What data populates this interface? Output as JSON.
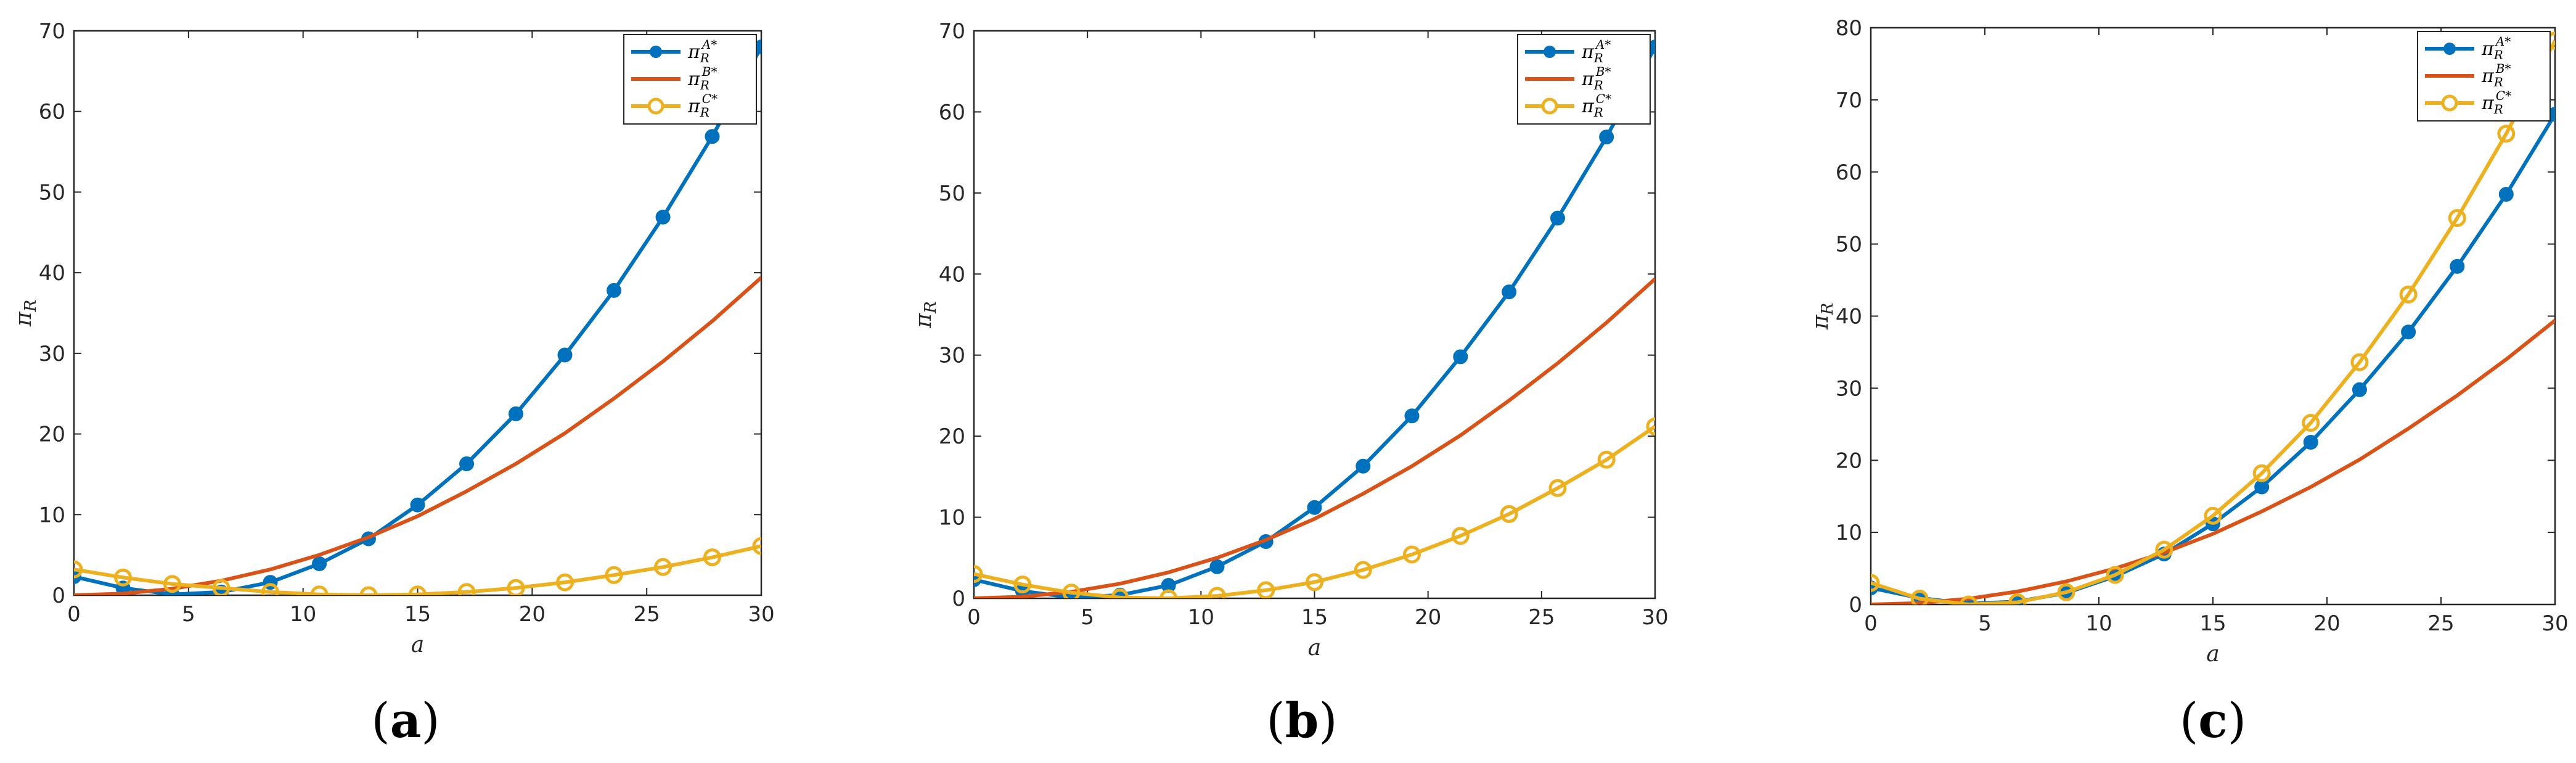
{
  "chart_data": [
    {
      "type": "line",
      "caption_letter": "a",
      "xlabel_symbol": "a",
      "ylabel_symbol": "π",
      "ylabel_subscript": "R",
      "xlim": [
        0,
        30
      ],
      "ylim": [
        0,
        70
      ],
      "xticks": [
        "0",
        "5",
        "10",
        "15",
        "20",
        "25",
        "30"
      ],
      "yticks": [
        "0",
        "10",
        "20",
        "30",
        "40",
        "50",
        "60",
        "70"
      ],
      "legend_position": "top-right",
      "series": [
        {
          "name": "π_R^{A*}",
          "base": "π",
          "sub": "R",
          "sup": "A*",
          "color": "#0072BD",
          "marker": "dot",
          "x": [
            0,
            2.14,
            4.29,
            6.43,
            8.57,
            10.71,
            12.86,
            15,
            17.14,
            19.29,
            21.43,
            23.57,
            25.71,
            27.86,
            30
          ],
          "y": [
            2.3,
            0.9,
            0.1,
            0.4,
            1.6,
            3.9,
            7.0,
            11.2,
            16.3,
            22.5,
            29.8,
            37.8,
            46.9,
            56.9,
            68.0
          ]
        },
        {
          "name": "π_R^{B*}",
          "base": "π",
          "sub": "R",
          "sup": "B*",
          "color": "#D95319",
          "marker": "none",
          "x": [
            0,
            2.14,
            4.29,
            6.43,
            8.57,
            10.71,
            12.86,
            15,
            17.14,
            19.29,
            21.43,
            23.57,
            25.71,
            27.86,
            30
          ],
          "y": [
            0.0,
            0.2,
            0.8,
            1.8,
            3.2,
            5.0,
            7.2,
            9.8,
            12.9,
            16.3,
            20.1,
            24.4,
            29.0,
            34.0,
            39.4
          ]
        },
        {
          "name": "π_R^{C*}",
          "base": "π",
          "sub": "R",
          "sup": "C*",
          "color": "#EDB120",
          "marker": "ring",
          "x": [
            0,
            2.14,
            4.29,
            6.43,
            8.57,
            10.71,
            12.86,
            15,
            17.14,
            19.29,
            21.43,
            23.57,
            25.71,
            27.86,
            30
          ],
          "y": [
            3.2,
            2.2,
            1.4,
            0.9,
            0.4,
            0.1,
            0.0,
            0.1,
            0.4,
            0.9,
            1.6,
            2.5,
            3.5,
            4.7,
            6.1
          ]
        }
      ]
    },
    {
      "type": "line",
      "caption_letter": "b",
      "xlabel_symbol": "a",
      "ylabel_symbol": "π",
      "ylabel_subscript": "R",
      "xlim": [
        0,
        30
      ],
      "ylim": [
        0,
        70
      ],
      "xticks": [
        "0",
        "5",
        "10",
        "15",
        "20",
        "25",
        "30"
      ],
      "yticks": [
        "0",
        "10",
        "20",
        "30",
        "40",
        "50",
        "60",
        "70"
      ],
      "legend_position": "top-right",
      "series": [
        {
          "name": "π_R^{A*}",
          "base": "π",
          "sub": "R",
          "sup": "A*",
          "color": "#0072BD",
          "marker": "dot",
          "x": [
            0,
            2.14,
            4.29,
            6.43,
            8.57,
            10.71,
            12.86,
            15,
            17.14,
            19.29,
            21.43,
            23.57,
            25.71,
            27.86,
            30
          ],
          "y": [
            2.3,
            0.9,
            0.1,
            0.4,
            1.6,
            3.9,
            7.0,
            11.2,
            16.3,
            22.5,
            29.8,
            37.8,
            46.9,
            56.9,
            68.0
          ]
        },
        {
          "name": "π_R^{B*}",
          "base": "π",
          "sub": "R",
          "sup": "B*",
          "color": "#D95319",
          "marker": "none",
          "x": [
            0,
            2.14,
            4.29,
            6.43,
            8.57,
            10.71,
            12.86,
            15,
            17.14,
            19.29,
            21.43,
            23.57,
            25.71,
            27.86,
            30
          ],
          "y": [
            0.0,
            0.2,
            0.8,
            1.8,
            3.2,
            5.0,
            7.2,
            9.8,
            12.9,
            16.3,
            20.1,
            24.4,
            29.0,
            34.0,
            39.4
          ]
        },
        {
          "name": "π_R^{C*}",
          "base": "π",
          "sub": "R",
          "sup": "C*",
          "color": "#EDB120",
          "marker": "ring",
          "x": [
            0,
            2.14,
            4.29,
            6.43,
            8.57,
            10.71,
            12.86,
            15,
            17.14,
            19.29,
            21.43,
            23.57,
            25.71,
            27.86,
            30
          ],
          "y": [
            3.0,
            1.7,
            0.7,
            0.1,
            0.0,
            0.3,
            1.0,
            2.0,
            3.5,
            5.4,
            7.7,
            10.4,
            13.6,
            17.1,
            21.2
          ]
        }
      ]
    },
    {
      "type": "line",
      "caption_letter": "c",
      "xlabel_symbol": "a",
      "ylabel_symbol": "π",
      "ylabel_subscript": "R",
      "xlim": [
        0,
        30
      ],
      "ylim": [
        0,
        80
      ],
      "xticks": [
        "0",
        "5",
        "10",
        "15",
        "20",
        "25",
        "30"
      ],
      "yticks": [
        "0",
        "10",
        "20",
        "30",
        "40",
        "50",
        "60",
        "70",
        "80"
      ],
      "legend_position": "top-right",
      "series": [
        {
          "name": "π_R^{A*}",
          "base": "π",
          "sub": "R",
          "sup": "A*",
          "color": "#0072BD",
          "marker": "dot",
          "x": [
            0,
            2.14,
            4.29,
            6.43,
            8.57,
            10.71,
            12.86,
            15,
            17.14,
            19.29,
            21.43,
            23.57,
            25.71,
            27.86,
            30
          ],
          "y": [
            2.3,
            0.9,
            0.1,
            0.4,
            1.6,
            3.9,
            7.0,
            11.2,
            16.3,
            22.5,
            29.8,
            37.8,
            46.9,
            56.9,
            68.0
          ]
        },
        {
          "name": "π_R^{B*}",
          "base": "π",
          "sub": "R",
          "sup": "B*",
          "color": "#D95319",
          "marker": "none",
          "x": [
            0,
            2.14,
            4.29,
            6.43,
            8.57,
            10.71,
            12.86,
            15,
            17.14,
            19.29,
            21.43,
            23.57,
            25.71,
            27.86,
            30
          ],
          "y": [
            0.0,
            0.2,
            0.8,
            1.8,
            3.2,
            5.0,
            7.2,
            9.8,
            12.9,
            16.3,
            20.1,
            24.4,
            29.0,
            34.0,
            39.4
          ]
        },
        {
          "name": "π_R^{C*}",
          "base": "π",
          "sub": "R",
          "sup": "C*",
          "color": "#EDB120",
          "marker": "ring",
          "x": [
            0,
            2.14,
            4.29,
            6.43,
            8.57,
            10.71,
            12.86,
            15,
            17.14,
            19.29,
            21.43,
            23.57,
            25.71,
            27.86,
            30
          ],
          "y": [
            3.0,
            0.8,
            0.0,
            0.3,
            1.7,
            4.1,
            7.6,
            12.3,
            18.2,
            25.2,
            33.6,
            43.0,
            53.6,
            65.3,
            78.2
          ]
        }
      ]
    }
  ]
}
